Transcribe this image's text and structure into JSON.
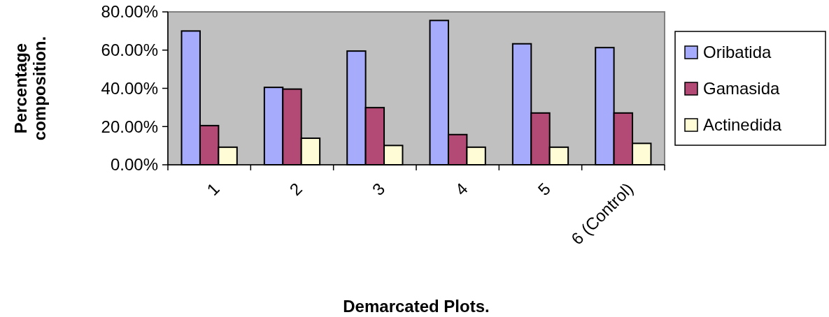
{
  "chart_data": {
    "type": "bar",
    "xlabel": "Demarcated Plots.",
    "ylabel": "Percentage composition.",
    "categories": [
      "1",
      "2",
      "3",
      "4",
      "5",
      "6 (Control)"
    ],
    "series": [
      {
        "name": "Oribatida",
        "color": "#a6acfb",
        "values": [
          70,
          40.5,
          59.5,
          75.5,
          63.3,
          61.3
        ]
      },
      {
        "name": "Gamasida",
        "color": "#b34a76",
        "values": [
          20.5,
          39.6,
          29.9,
          15.8,
          27.1,
          27.1
        ]
      },
      {
        "name": "Actinedida",
        "color": "#fffcd6",
        "values": [
          9.2,
          13.9,
          10.1,
          9.2,
          9.2,
          11.2
        ]
      }
    ],
    "ylim": [
      0,
      80
    ],
    "yticks": [
      {
        "value": 0,
        "label": "0.00%"
      },
      {
        "value": 20,
        "label": "20.00%"
      },
      {
        "value": 40,
        "label": "40.00%"
      },
      {
        "value": 60,
        "label": "60.00%"
      },
      {
        "value": 80,
        "label": "80.00%"
      }
    ],
    "grid": false,
    "legend": "right"
  }
}
